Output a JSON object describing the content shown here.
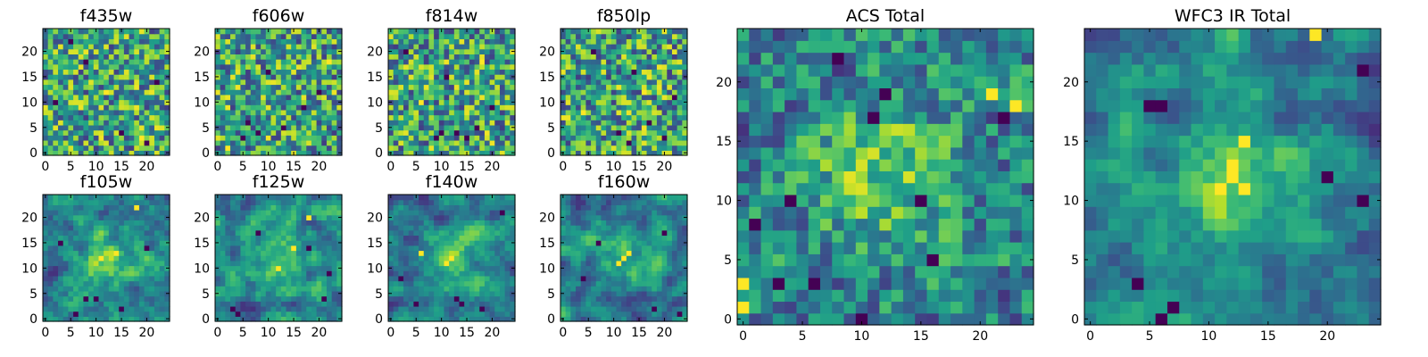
{
  "chart_data": [
    {
      "type": "heatmap",
      "title": "f435w",
      "size": 25,
      "smooth": 0,
      "seed": 435,
      "x_ticks": [
        0,
        5,
        10,
        15,
        20
      ],
      "y_ticks": [
        0,
        5,
        10,
        15,
        20
      ],
      "darks": [
        [
          8,
          18
        ],
        [
          20,
          2
        ],
        [
          2,
          10
        ],
        [
          15,
          4
        ],
        [
          22,
          14
        ],
        [
          5,
          22
        ]
      ],
      "brights": [
        [
          19,
          3
        ],
        [
          12,
          12
        ]
      ]
    },
    {
      "type": "heatmap",
      "title": "f606w",
      "size": 25,
      "smooth": 0,
      "seed": 606,
      "x_ticks": [
        0,
        5,
        10,
        15,
        20
      ],
      "y_ticks": [
        0,
        5,
        10,
        15,
        20
      ],
      "darks": [
        [
          5,
          3
        ],
        [
          8,
          4
        ],
        [
          6,
          6
        ],
        [
          13,
          5
        ],
        [
          20,
          12
        ],
        [
          10,
          16
        ],
        [
          17,
          9
        ]
      ],
      "brights": [
        [
          2,
          1
        ],
        [
          22,
          18
        ]
      ]
    },
    {
      "type": "heatmap",
      "title": "f814w",
      "size": 25,
      "smooth": 0,
      "seed": 814,
      "x_ticks": [
        0,
        5,
        10,
        15,
        20
      ],
      "y_ticks": [
        0,
        5,
        10,
        15,
        20
      ],
      "darks": [
        [
          9,
          3
        ],
        [
          10,
          4
        ],
        [
          13,
          4
        ],
        [
          15,
          3
        ],
        [
          17,
          5
        ],
        [
          20,
          9
        ],
        [
          11,
          15
        ],
        [
          3,
          20
        ]
      ],
      "brights": [
        [
          6,
          10
        ],
        [
          18,
          18
        ]
      ]
    },
    {
      "type": "heatmap",
      "title": "f850lp",
      "size": 25,
      "smooth": 0,
      "seed": 850,
      "x_ticks": [
        0,
        5,
        10,
        15,
        20
      ],
      "y_ticks": [
        0,
        5,
        10,
        15,
        20
      ],
      "darks": [
        [
          11,
          4
        ],
        [
          13,
          2
        ],
        [
          17,
          6
        ],
        [
          20,
          3
        ],
        [
          22,
          11
        ],
        [
          14,
          16
        ],
        [
          6,
          20
        ]
      ],
      "brights": [
        [
          4,
          8
        ],
        [
          16,
          12
        ]
      ]
    },
    {
      "type": "heatmap",
      "title": "f105w",
      "size": 25,
      "smooth": 0.55,
      "seed": 105,
      "x_ticks": [
        0,
        5,
        10,
        15,
        20
      ],
      "y_ticks": [
        0,
        5,
        10,
        15,
        20
      ],
      "darks": [
        [
          8,
          4
        ],
        [
          10,
          4
        ],
        [
          6,
          1
        ],
        [
          15,
          2
        ],
        [
          20,
          14
        ],
        [
          3,
          15
        ]
      ],
      "brights": [
        [
          11,
          12
        ],
        [
          14,
          13
        ],
        [
          18,
          22
        ]
      ]
    },
    {
      "type": "heatmap",
      "title": "f125w",
      "size": 25,
      "smooth": 0.6,
      "seed": 125,
      "x_ticks": [
        0,
        5,
        10,
        15,
        20
      ],
      "y_ticks": [
        0,
        5,
        10,
        15,
        20
      ],
      "darks": [
        [
          3,
          2
        ],
        [
          4,
          1
        ],
        [
          8,
          17
        ],
        [
          18,
          14
        ],
        [
          22,
          9
        ],
        [
          21,
          4
        ]
      ],
      "brights": [
        [
          12,
          10
        ],
        [
          15,
          14
        ],
        [
          18,
          20
        ]
      ]
    },
    {
      "type": "heatmap",
      "title": "f140w",
      "size": 25,
      "smooth": 0.6,
      "seed": 140,
      "x_ticks": [
        0,
        5,
        10,
        15,
        20
      ],
      "y_ticks": [
        0,
        5,
        10,
        15,
        20
      ],
      "darks": [
        [
          5,
          3
        ],
        [
          13,
          4
        ],
        [
          14,
          3
        ],
        [
          22,
          21
        ],
        [
          18,
          2
        ],
        [
          2,
          8
        ]
      ],
      "brights": [
        [
          11,
          11
        ],
        [
          12,
          12
        ],
        [
          6,
          13
        ]
      ]
    },
    {
      "type": "heatmap",
      "title": "f160w",
      "size": 25,
      "smooth": 0.65,
      "seed": 160,
      "x_ticks": [
        0,
        5,
        10,
        15,
        20
      ],
      "y_ticks": [
        0,
        5,
        10,
        15,
        20
      ],
      "darks": [
        [
          20,
          17
        ],
        [
          18,
          2
        ],
        [
          23,
          1
        ],
        [
          4,
          8
        ],
        [
          7,
          15
        ]
      ],
      "brights": [
        [
          12,
          12
        ],
        [
          13,
          13
        ],
        [
          11,
          11
        ]
      ]
    },
    {
      "type": "heatmap",
      "title": "ACS Total",
      "size": 25,
      "smooth": 0.15,
      "seed": 1001,
      "x_ticks": [
        0,
        5,
        10,
        15,
        20
      ],
      "y_ticks": [
        0,
        5,
        10,
        15,
        20
      ],
      "darks": [
        [
          8,
          22
        ],
        [
          12,
          19
        ],
        [
          11,
          17
        ],
        [
          15,
          10
        ],
        [
          4,
          10
        ],
        [
          1,
          8
        ],
        [
          3,
          3
        ],
        [
          6,
          3
        ],
        [
          10,
          0
        ],
        [
          16,
          5
        ],
        [
          22,
          17
        ]
      ],
      "brights": [
        [
          23,
          18
        ],
        [
          21,
          19
        ],
        [
          0,
          3
        ],
        [
          0,
          1
        ]
      ]
    },
    {
      "type": "heatmap",
      "title": "WFC3 IR Total",
      "size": 25,
      "smooth": 0.55,
      "seed": 2002,
      "x_ticks": [
        0,
        5,
        10,
        15,
        20
      ],
      "y_ticks": [
        0,
        5,
        10,
        15,
        20
      ],
      "darks": [
        [
          6,
          18
        ],
        [
          5,
          18
        ],
        [
          20,
          12
        ],
        [
          4,
          3
        ],
        [
          6,
          0
        ],
        [
          7,
          1
        ],
        [
          23,
          10
        ],
        [
          23,
          21
        ]
      ],
      "brights": [
        [
          12,
          12
        ],
        [
          13,
          11
        ],
        [
          11,
          11
        ],
        [
          12,
          13
        ],
        [
          13,
          15
        ],
        [
          19,
          24
        ]
      ]
    }
  ]
}
